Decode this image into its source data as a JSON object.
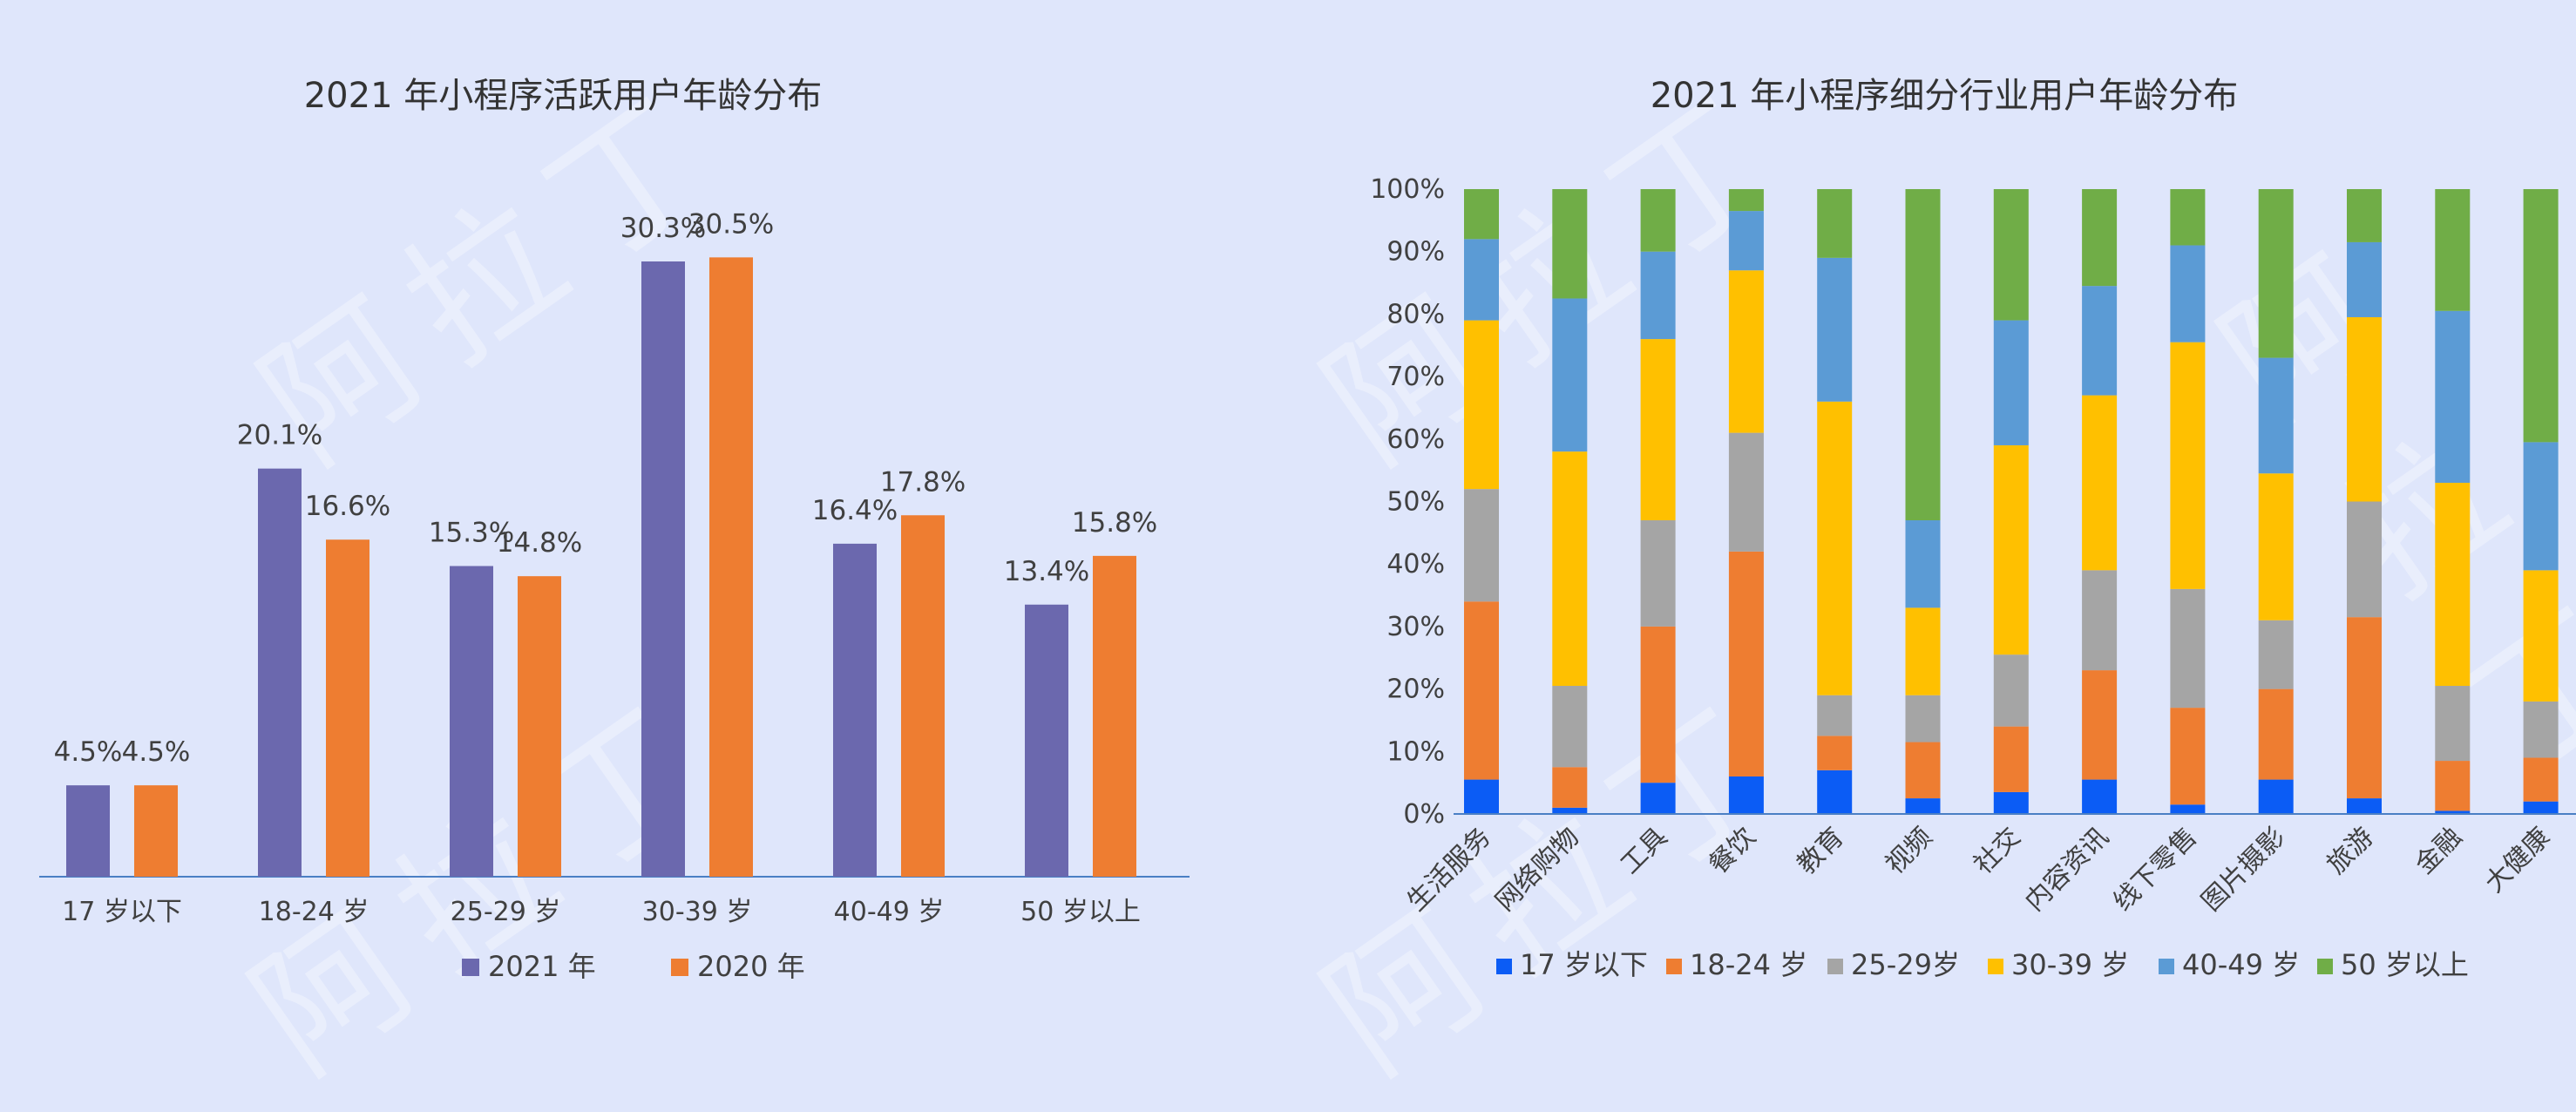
{
  "colors": {
    "y2021": "#6b68ae",
    "y2020": "#ee7d31",
    "age_17_below": "#0b5cf5",
    "age_18_24": "#ee7d31",
    "age_25_29": "#a5a5a5",
    "age_30_39": "#ffc000",
    "age_40_49": "#5b9bd5",
    "age_50_above": "#70ad47",
    "axis": "#4a7fc4"
  },
  "watermark_text": "阿拉丁",
  "chart_data": [
    {
      "type": "bar",
      "title": "2021 年小程序活跃用户年龄分布",
      "categories": [
        "17 岁以下",
        "18-24 岁",
        "25-29 岁",
        "30-39 岁",
        "40-49 岁",
        "50 岁以上"
      ],
      "series": [
        {
          "name": "2021 年",
          "values": [
            4.5,
            20.1,
            15.3,
            30.3,
            16.4,
            13.4
          ],
          "labels": [
            "4.5%",
            "20.1%",
            "15.3%",
            "30.3%",
            "16.4%",
            "13.4%"
          ]
        },
        {
          "name": "2020 年",
          "values": [
            4.5,
            16.6,
            14.8,
            30.5,
            17.8,
            15.8
          ],
          "labels": [
            "4.5%",
            "16.6%",
            "14.8%",
            "30.5%",
            "17.8%",
            "15.8%"
          ]
        }
      ],
      "ylim": [
        0,
        32
      ],
      "grid": false,
      "legend": "bottom"
    },
    {
      "type": "bar",
      "stacked": true,
      "title": "2021 年小程序细分行业用户年龄分布",
      "categories": [
        "生活服务",
        "网络购物",
        "工具",
        "餐饮",
        "教育",
        "视频",
        "社交",
        "内容资讯",
        "线下零售",
        "图片摄影",
        "旅游",
        "金融",
        "大健康"
      ],
      "series": [
        {
          "name": "17 岁以下",
          "values": [
            5.5,
            1,
            5,
            6,
            7,
            2.5,
            3.5,
            5.5,
            1.5,
            5.5,
            2.5,
            0.5,
            2
          ]
        },
        {
          "name": "18-24 岁",
          "values": [
            28.5,
            6.5,
            25,
            36,
            5.5,
            9,
            10.5,
            17.5,
            15.5,
            14.5,
            29,
            8,
            7
          ]
        },
        {
          "name": "25-29岁",
          "values": [
            18,
            13,
            17,
            19,
            6.5,
            7.5,
            11.5,
            16,
            19,
            11,
            18.5,
            12,
            9
          ]
        },
        {
          "name": "30-39 岁",
          "values": [
            27,
            37.5,
            29,
            26,
            47,
            14,
            33.5,
            28,
            39.5,
            23.5,
            29.5,
            32.5,
            21
          ]
        },
        {
          "name": "40-49 岁",
          "values": [
            13,
            24.5,
            14,
            9.5,
            23,
            14,
            20,
            17.5,
            15.5,
            18.5,
            12,
            27.5,
            20.5
          ]
        },
        {
          "name": "50 岁以上",
          "values": [
            8,
            17.5,
            10,
            3.5,
            11,
            53,
            21,
            15.5,
            9,
            27,
            8.5,
            19.5,
            40.5
          ]
        }
      ],
      "yticks": [
        "0%",
        "10%",
        "20%",
        "30%",
        "40%",
        "50%",
        "60%",
        "70%",
        "80%",
        "90%",
        "100%"
      ],
      "ylim": [
        0,
        100
      ],
      "grid": false,
      "legend": "bottom"
    }
  ]
}
